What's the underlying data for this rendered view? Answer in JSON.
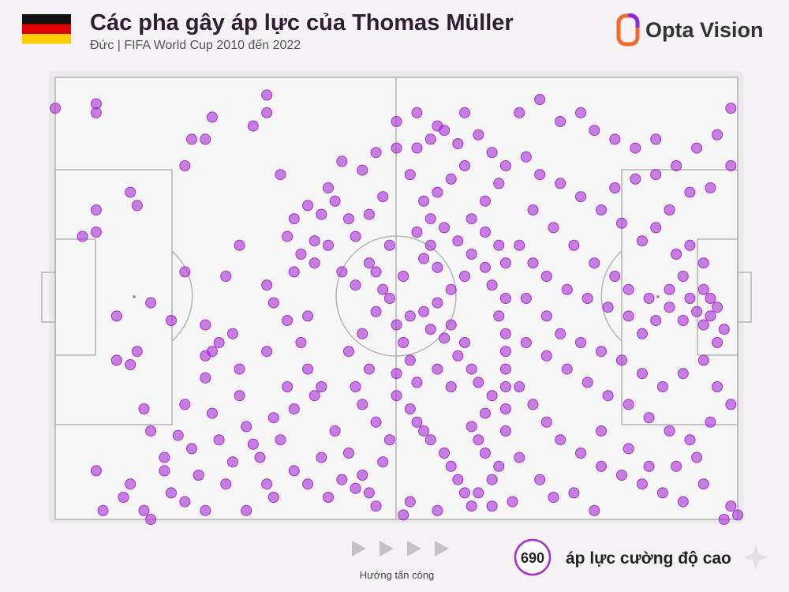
{
  "chart_data": {
    "type": "scatter",
    "title": "Các pha gây áp lực của Thomas Müller",
    "subtitle": "Đức | FIFA World Cup 2010 đến 2022",
    "brand": "Opta Vision",
    "direction_label": "Hướng tấn công",
    "count": 690,
    "xlim": [
      0,
      100
    ],
    "ylim": [
      0,
      100
    ],
    "series": [
      {
        "name": "áp lực cường độ cao",
        "color": "#a52fd0",
        "points": [
          [
            0,
            93
          ],
          [
            6,
            94
          ],
          [
            6,
            92
          ],
          [
            23,
            91
          ],
          [
            29,
            89
          ],
          [
            31,
            92
          ],
          [
            31,
            96
          ],
          [
            22,
            86
          ],
          [
            20,
            86
          ],
          [
            19,
            80
          ],
          [
            33,
            78
          ],
          [
            11,
            74
          ],
          [
            12,
            71
          ],
          [
            6,
            70
          ],
          [
            4,
            64
          ],
          [
            6,
            65
          ],
          [
            19,
            56
          ],
          [
            25,
            55
          ],
          [
            27,
            62
          ],
          [
            38,
            63
          ],
          [
            35,
            68
          ],
          [
            37,
            71
          ],
          [
            9,
            46
          ],
          [
            14,
            49
          ],
          [
            17,
            45
          ],
          [
            22,
            44
          ],
          [
            12,
            38
          ],
          [
            23,
            38
          ],
          [
            22,
            32
          ],
          [
            24,
            40
          ],
          [
            34,
            45
          ],
          [
            32,
            49
          ],
          [
            37,
            46
          ],
          [
            36,
            40
          ],
          [
            27,
            34
          ],
          [
            31,
            38
          ],
          [
            37,
            34
          ],
          [
            39,
            30
          ],
          [
            11,
            35
          ],
          [
            9,
            36
          ],
          [
            14,
            20
          ],
          [
            19,
            26
          ],
          [
            23,
            24
          ],
          [
            27,
            28
          ],
          [
            32,
            23
          ],
          [
            33,
            18
          ],
          [
            35,
            25
          ],
          [
            38,
            28
          ],
          [
            41,
            20
          ],
          [
            34,
            30
          ],
          [
            16,
            11
          ],
          [
            19,
            4
          ],
          [
            17,
            6
          ],
          [
            21,
            10
          ],
          [
            25,
            8
          ],
          [
            26,
            13
          ],
          [
            29,
            17
          ],
          [
            30,
            14
          ],
          [
            31,
            8
          ],
          [
            32,
            5
          ],
          [
            35,
            11
          ],
          [
            37,
            8
          ],
          [
            39,
            14
          ],
          [
            40,
            5
          ],
          [
            42,
            9
          ],
          [
            43,
            15
          ],
          [
            44,
            7
          ],
          [
            13,
            2
          ],
          [
            10,
            5
          ],
          [
            7,
            2
          ],
          [
            6,
            11
          ],
          [
            11,
            8
          ],
          [
            22,
            2
          ],
          [
            28,
            2
          ],
          [
            24,
            18
          ],
          [
            20,
            16
          ],
          [
            16,
            14
          ],
          [
            18,
            19
          ],
          [
            28,
            21
          ],
          [
            13,
            25
          ],
          [
            14,
            0
          ],
          [
            22,
            37
          ],
          [
            26,
            42
          ],
          [
            31,
            53
          ],
          [
            35,
            56
          ],
          [
            36,
            60
          ],
          [
            34,
            64
          ],
          [
            38,
            58
          ],
          [
            40,
            75
          ],
          [
            41,
            72
          ],
          [
            43,
            68
          ],
          [
            44,
            64
          ],
          [
            46,
            58
          ],
          [
            47,
            56
          ],
          [
            48,
            52
          ],
          [
            49,
            50
          ],
          [
            50,
            44
          ],
          [
            51,
            40
          ],
          [
            52,
            36
          ],
          [
            50,
            33
          ],
          [
            50,
            28
          ],
          [
            52,
            25
          ],
          [
            53,
            22
          ],
          [
            54,
            20
          ],
          [
            55,
            18
          ],
          [
            57,
            15
          ],
          [
            58,
            12
          ],
          [
            59,
            9
          ],
          [
            60,
            6
          ],
          [
            61,
            3
          ],
          [
            56,
            2
          ],
          [
            52,
            4
          ],
          [
            51,
            1
          ],
          [
            47,
            3
          ],
          [
            46,
            6
          ],
          [
            45,
            10
          ],
          [
            48,
            13
          ],
          [
            49,
            18
          ],
          [
            47,
            22
          ],
          [
            45,
            26
          ],
          [
            44,
            30
          ],
          [
            46,
            34
          ],
          [
            43,
            38
          ],
          [
            45,
            42
          ],
          [
            47,
            47
          ],
          [
            44,
            53
          ],
          [
            42,
            56
          ],
          [
            40,
            62
          ],
          [
            39,
            69
          ],
          [
            42,
            81
          ],
          [
            45,
            79
          ],
          [
            47,
            83
          ],
          [
            50,
            84
          ],
          [
            53,
            84
          ],
          [
            55,
            86
          ],
          [
            57,
            88
          ],
          [
            59,
            85
          ],
          [
            60,
            80
          ],
          [
            58,
            77
          ],
          [
            56,
            74
          ],
          [
            54,
            72
          ],
          [
            55,
            68
          ],
          [
            57,
            66
          ],
          [
            59,
            63
          ],
          [
            61,
            60
          ],
          [
            63,
            57
          ],
          [
            60,
            55
          ],
          [
            58,
            52
          ],
          [
            56,
            49
          ],
          [
            54,
            47
          ],
          [
            55,
            43
          ],
          [
            57,
            41
          ],
          [
            59,
            37
          ],
          [
            61,
            34
          ],
          [
            62,
            31
          ],
          [
            64,
            28
          ],
          [
            63,
            24
          ],
          [
            61,
            21
          ],
          [
            62,
            18
          ],
          [
            63,
            15
          ],
          [
            65,
            12
          ],
          [
            64,
            9
          ],
          [
            62,
            6
          ],
          [
            64,
            3
          ],
          [
            58,
            30
          ],
          [
            56,
            34
          ],
          [
            53,
            31
          ],
          [
            52,
            46
          ],
          [
            51,
            55
          ],
          [
            49,
            62
          ],
          [
            46,
            69
          ],
          [
            48,
            73
          ],
          [
            52,
            78
          ],
          [
            50,
            90
          ],
          [
            53,
            92
          ],
          [
            56,
            89
          ],
          [
            60,
            92
          ],
          [
            62,
            87
          ],
          [
            64,
            83
          ],
          [
            66,
            80
          ],
          [
            65,
            76
          ],
          [
            63,
            72
          ],
          [
            61,
            68
          ],
          [
            63,
            65
          ],
          [
            65,
            62
          ],
          [
            66,
            58
          ],
          [
            64,
            53
          ],
          [
            66,
            50
          ],
          [
            65,
            46
          ],
          [
            66,
            42
          ],
          [
            66,
            38
          ],
          [
            66,
            34
          ],
          [
            66,
            30
          ],
          [
            66,
            25
          ],
          [
            66,
            20
          ],
          [
            60,
            40
          ],
          [
            58,
            44
          ],
          [
            56,
            57
          ],
          [
            54,
            59
          ],
          [
            55,
            62
          ],
          [
            53,
            65
          ],
          [
            68,
            92
          ],
          [
            71,
            95
          ],
          [
            74,
            90
          ],
          [
            77,
            92
          ],
          [
            79,
            88
          ],
          [
            82,
            86
          ],
          [
            85,
            84
          ],
          [
            88,
            86
          ],
          [
            91,
            80
          ],
          [
            94,
            84
          ],
          [
            97,
            87
          ],
          [
            99,
            80
          ],
          [
            96,
            75
          ],
          [
            93,
            74
          ],
          [
            90,
            70
          ],
          [
            88,
            66
          ],
          [
            86,
            63
          ],
          [
            83,
            67
          ],
          [
            80,
            70
          ],
          [
            77,
            73
          ],
          [
            74,
            76
          ],
          [
            71,
            78
          ],
          [
            69,
            82
          ],
          [
            70,
            70
          ],
          [
            73,
            66
          ],
          [
            76,
            62
          ],
          [
            79,
            58
          ],
          [
            82,
            55
          ],
          [
            84,
            52
          ],
          [
            87,
            50
          ],
          [
            90,
            52
          ],
          [
            92,
            55
          ],
          [
            95,
            58
          ],
          [
            93,
            62
          ],
          [
            91,
            60
          ],
          [
            95,
            52
          ],
          [
            96,
            50
          ],
          [
            97,
            48
          ],
          [
            94,
            47
          ],
          [
            92,
            45
          ],
          [
            95,
            44
          ],
          [
            98,
            43
          ],
          [
            97,
            40
          ],
          [
            96,
            46
          ],
          [
            93,
            50
          ],
          [
            90,
            48
          ],
          [
            88,
            45
          ],
          [
            86,
            42
          ],
          [
            84,
            46
          ],
          [
            81,
            48
          ],
          [
            78,
            50
          ],
          [
            75,
            52
          ],
          [
            72,
            55
          ],
          [
            70,
            58
          ],
          [
            68,
            62
          ],
          [
            69,
            50
          ],
          [
            72,
            46
          ],
          [
            74,
            42
          ],
          [
            77,
            40
          ],
          [
            80,
            38
          ],
          [
            83,
            36
          ],
          [
            86,
            33
          ],
          [
            89,
            30
          ],
          [
            92,
            33
          ],
          [
            95,
            36
          ],
          [
            97,
            30
          ],
          [
            99,
            26
          ],
          [
            96,
            22
          ],
          [
            93,
            18
          ],
          [
            90,
            20
          ],
          [
            87,
            23
          ],
          [
            84,
            26
          ],
          [
            81,
            28
          ],
          [
            78,
            31
          ],
          [
            75,
            34
          ],
          [
            72,
            37
          ],
          [
            69,
            40
          ],
          [
            68,
            30
          ],
          [
            70,
            26
          ],
          [
            72,
            22
          ],
          [
            74,
            18
          ],
          [
            77,
            15
          ],
          [
            80,
            12
          ],
          [
            83,
            10
          ],
          [
            86,
            8
          ],
          [
            89,
            6
          ],
          [
            92,
            4
          ],
          [
            95,
            8
          ],
          [
            99,
            3
          ],
          [
            100,
            1
          ],
          [
            98,
            0
          ],
          [
            71,
            9
          ],
          [
            73,
            5
          ],
          [
            68,
            14
          ],
          [
            67,
            4
          ],
          [
            76,
            6
          ],
          [
            79,
            2
          ],
          [
            84,
            16
          ],
          [
            87,
            12
          ],
          [
            91,
            12
          ],
          [
            94,
            14
          ],
          [
            80,
            20
          ],
          [
            82,
            75
          ],
          [
            85,
            77
          ],
          [
            88,
            78
          ],
          [
            99,
            93
          ]
        ]
      }
    ]
  }
}
